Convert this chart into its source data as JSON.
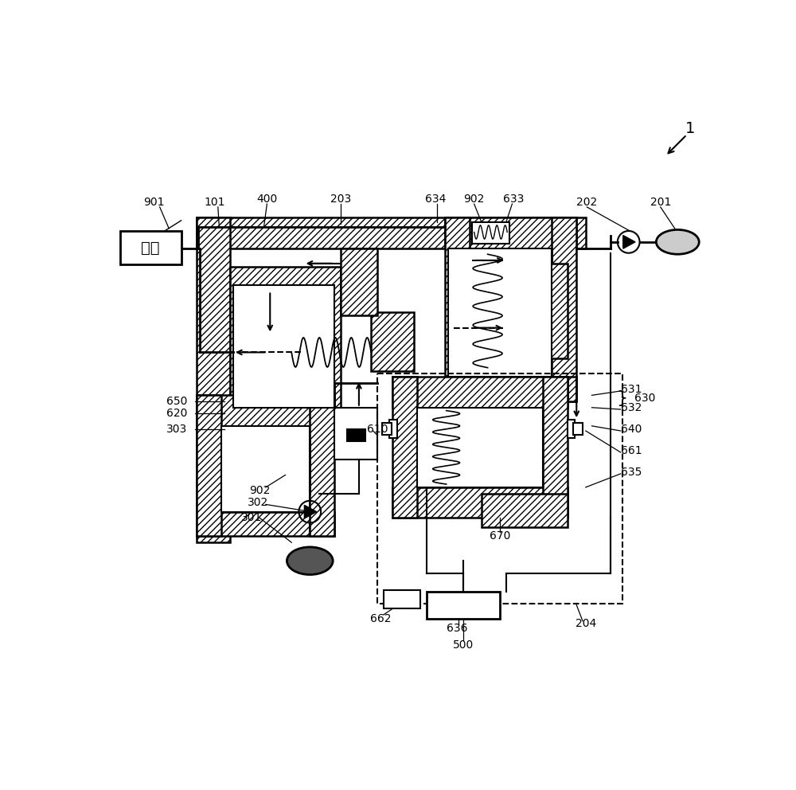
{
  "bg_color": "#ffffff",
  "fig_width": 10.0,
  "fig_height": 9.92,
  "dpi": 100
}
